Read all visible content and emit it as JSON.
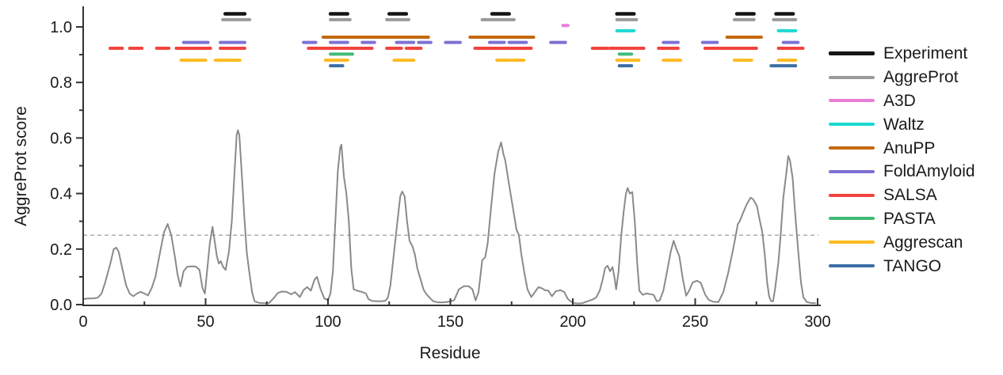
{
  "figure": {
    "background": "#ffffff"
  },
  "chart_data": {
    "type": "line",
    "title": "",
    "xlabel": "Residue",
    "ylabel": "AggreProt score",
    "xlim": [
      0,
      300
    ],
    "ylim": [
      0,
      1.0
    ],
    "x_major_ticks": [
      0,
      50,
      100,
      150,
      200,
      250,
      300
    ],
    "x_minor_ticks": [
      25,
      75,
      125,
      175,
      225,
      275
    ],
    "y_major_ticks": [
      0.0,
      0.2,
      0.4,
      0.6,
      0.8,
      1.0
    ],
    "y_minor_ticks": [
      0.1,
      0.3,
      0.5,
      0.7,
      0.9
    ],
    "grid": false,
    "legend_position": "right",
    "threshold": {
      "score": 0.25,
      "style": "dashed",
      "color": "#9e9e9e"
    },
    "curve": {
      "name": "AggreProt",
      "color": "#8a8a8a",
      "points": [
        [
          0,
          0.02
        ],
        [
          2,
          0.022
        ],
        [
          4,
          0.022
        ],
        [
          6,
          0.025
        ],
        [
          7.5,
          0.04
        ],
        [
          9,
          0.08
        ],
        [
          11,
          0.145
        ],
        [
          12.5,
          0.2
        ],
        [
          13.5,
          0.205
        ],
        [
          14.5,
          0.19
        ],
        [
          16,
          0.13
        ],
        [
          17.5,
          0.07
        ],
        [
          19,
          0.04
        ],
        [
          20.5,
          0.03
        ],
        [
          22,
          0.04
        ],
        [
          23.5,
          0.046
        ],
        [
          25,
          0.04
        ],
        [
          26.5,
          0.033
        ],
        [
          28,
          0.06
        ],
        [
          29.5,
          0.1
        ],
        [
          31,
          0.17
        ],
        [
          33,
          0.26
        ],
        [
          34.5,
          0.29
        ],
        [
          36,
          0.25
        ],
        [
          37.5,
          0.17
        ],
        [
          38.5,
          0.11
        ],
        [
          39.7,
          0.065
        ],
        [
          41,
          0.12
        ],
        [
          42.5,
          0.136
        ],
        [
          44.5,
          0.138
        ],
        [
          46,
          0.137
        ],
        [
          47.5,
          0.125
        ],
        [
          48.7,
          0.06
        ],
        [
          49.7,
          0.04
        ],
        [
          50.7,
          0.13
        ],
        [
          51.7,
          0.22
        ],
        [
          52.8,
          0.28
        ],
        [
          53.7,
          0.23
        ],
        [
          54.6,
          0.175
        ],
        [
          55.4,
          0.148
        ],
        [
          56.2,
          0.156
        ],
        [
          57.2,
          0.135
        ],
        [
          58.2,
          0.125
        ],
        [
          59.5,
          0.19
        ],
        [
          60.7,
          0.3
        ],
        [
          61.7,
          0.46
        ],
        [
          62.7,
          0.61
        ],
        [
          63.2,
          0.628
        ],
        [
          63.8,
          0.61
        ],
        [
          64.8,
          0.47
        ],
        [
          65.8,
          0.32
        ],
        [
          66.8,
          0.19
        ],
        [
          67.8,
          0.12
        ],
        [
          69,
          0.045
        ],
        [
          70,
          0.012
        ],
        [
          72,
          0.006
        ],
        [
          74,
          0.005
        ],
        [
          76,
          0.006
        ],
        [
          78,
          0.025
        ],
        [
          79.5,
          0.042
        ],
        [
          81,
          0.047
        ],
        [
          83,
          0.046
        ],
        [
          85,
          0.037
        ],
        [
          86.5,
          0.045
        ],
        [
          88.5,
          0.027
        ],
        [
          90,
          0.052
        ],
        [
          91.5,
          0.063
        ],
        [
          93,
          0.05
        ],
        [
          94.5,
          0.09
        ],
        [
          95.5,
          0.1
        ],
        [
          97,
          0.055
        ],
        [
          98.5,
          0.022
        ],
        [
          100,
          0.016
        ],
        [
          101,
          0.04
        ],
        [
          102,
          0.12
        ],
        [
          103,
          0.3
        ],
        [
          104,
          0.48
        ],
        [
          105,
          0.565
        ],
        [
          105.5,
          0.576
        ],
        [
          106.5,
          0.46
        ],
        [
          107.5,
          0.4
        ],
        [
          108.5,
          0.3
        ],
        [
          109.5,
          0.13
        ],
        [
          110.5,
          0.055
        ],
        [
          112,
          0.05
        ],
        [
          114,
          0.045
        ],
        [
          115.5,
          0.04
        ],
        [
          116.5,
          0.02
        ],
        [
          118,
          0.013
        ],
        [
          120,
          0.012
        ],
        [
          122,
          0.012
        ],
        [
          123.5,
          0.014
        ],
        [
          124.5,
          0.026
        ],
        [
          125.5,
          0.07
        ],
        [
          126.5,
          0.15
        ],
        [
          128,
          0.27
        ],
        [
          129.5,
          0.39
        ],
        [
          130.3,
          0.407
        ],
        [
          131.3,
          0.39
        ],
        [
          132.3,
          0.3
        ],
        [
          133.3,
          0.23
        ],
        [
          134.5,
          0.21
        ],
        [
          135.5,
          0.18
        ],
        [
          136.5,
          0.13
        ],
        [
          137.5,
          0.1
        ],
        [
          139,
          0.055
        ],
        [
          140,
          0.04
        ],
        [
          141.5,
          0.025
        ],
        [
          143,
          0.012
        ],
        [
          145,
          0.008
        ],
        [
          147,
          0.008
        ],
        [
          149,
          0.01
        ],
        [
          151.5,
          0.015
        ],
        [
          153.5,
          0.055
        ],
        [
          155.5,
          0.066
        ],
        [
          157.5,
          0.066
        ],
        [
          159,
          0.055
        ],
        [
          160.3,
          0.015
        ],
        [
          161.5,
          0.045
        ],
        [
          163,
          0.16
        ],
        [
          164.2,
          0.17
        ],
        [
          165.2,
          0.22
        ],
        [
          166.5,
          0.34
        ],
        [
          168,
          0.47
        ],
        [
          169.5,
          0.55
        ],
        [
          170.7,
          0.584
        ],
        [
          171.7,
          0.54
        ],
        [
          172.4,
          0.52
        ],
        [
          174,
          0.43
        ],
        [
          175.5,
          0.35
        ],
        [
          177,
          0.27
        ],
        [
          178,
          0.25
        ],
        [
          179,
          0.18
        ],
        [
          180.2,
          0.115
        ],
        [
          181.5,
          0.055
        ],
        [
          183,
          0.027
        ],
        [
          184.5,
          0.045
        ],
        [
          186,
          0.063
        ],
        [
          187.5,
          0.058
        ],
        [
          188.5,
          0.052
        ],
        [
          190,
          0.05
        ],
        [
          191.5,
          0.03
        ],
        [
          193,
          0.048
        ],
        [
          195,
          0.052
        ],
        [
          196.5,
          0.045
        ],
        [
          198,
          0.02
        ],
        [
          200,
          0.006
        ],
        [
          202,
          0.004
        ],
        [
          204,
          0.005
        ],
        [
          206,
          0.012
        ],
        [
          208,
          0.018
        ],
        [
          209.5,
          0.025
        ],
        [
          211,
          0.05
        ],
        [
          212.2,
          0.09
        ],
        [
          213.2,
          0.132
        ],
        [
          214.2,
          0.14
        ],
        [
          215.2,
          0.12
        ],
        [
          216.2,
          0.135
        ],
        [
          217,
          0.1
        ],
        [
          217.7,
          0.055
        ],
        [
          218.7,
          0.12
        ],
        [
          219.7,
          0.24
        ],
        [
          220.7,
          0.33
        ],
        [
          221.7,
          0.4
        ],
        [
          222.4,
          0.42
        ],
        [
          223.3,
          0.4
        ],
        [
          224.3,
          0.405
        ],
        [
          225.3,
          0.3
        ],
        [
          226.3,
          0.15
        ],
        [
          227.2,
          0.05
        ],
        [
          228.5,
          0.035
        ],
        [
          230,
          0.04
        ],
        [
          231.5,
          0.038
        ],
        [
          233,
          0.035
        ],
        [
          234.3,
          0.012
        ],
        [
          235.5,
          0.015
        ],
        [
          237,
          0.05
        ],
        [
          238.5,
          0.12
        ],
        [
          240,
          0.19
        ],
        [
          241.2,
          0.23
        ],
        [
          242.3,
          0.2
        ],
        [
          243.5,
          0.175
        ],
        [
          245,
          0.09
        ],
        [
          246.3,
          0.032
        ],
        [
          247.5,
          0.05
        ],
        [
          249,
          0.08
        ],
        [
          250.7,
          0.086
        ],
        [
          252.3,
          0.078
        ],
        [
          254,
          0.037
        ],
        [
          255.5,
          0.017
        ],
        [
          257.5,
          0.01
        ],
        [
          259.5,
          0.009
        ],
        [
          261.5,
          0.045
        ],
        [
          263.5,
          0.115
        ],
        [
          265.5,
          0.2
        ],
        [
          266.8,
          0.26
        ],
        [
          267.4,
          0.29
        ],
        [
          268.2,
          0.3
        ],
        [
          269.5,
          0.33
        ],
        [
          271,
          0.36
        ],
        [
          272.6,
          0.385
        ],
        [
          273.6,
          0.38
        ],
        [
          275.2,
          0.355
        ],
        [
          276.2,
          0.31
        ],
        [
          277.4,
          0.26
        ],
        [
          278.4,
          0.18
        ],
        [
          279.4,
          0.08
        ],
        [
          280.2,
          0.03
        ],
        [
          281,
          0.012
        ],
        [
          281.8,
          0.012
        ],
        [
          282.7,
          0.06
        ],
        [
          284,
          0.155
        ],
        [
          285,
          0.26
        ],
        [
          286,
          0.385
        ],
        [
          287.3,
          0.48
        ],
        [
          288,
          0.535
        ],
        [
          288.7,
          0.52
        ],
        [
          289.8,
          0.455
        ],
        [
          290.8,
          0.33
        ],
        [
          292,
          0.2
        ],
        [
          293.2,
          0.08
        ],
        [
          294.2,
          0.026
        ],
        [
          295.5,
          0.01
        ],
        [
          297,
          0.006
        ],
        [
          299,
          0.005
        ]
      ]
    },
    "tracks": [
      {
        "name": "Experiment",
        "color": "#141414",
        "row_score": 1.047,
        "line_width": 4.5,
        "segments": [
          [
            58,
            66
          ],
          [
            101,
            108
          ],
          [
            125,
            132
          ],
          [
            167,
            174
          ],
          [
            218,
            225
          ],
          [
            267,
            274
          ],
          [
            283,
            290
          ]
        ]
      },
      {
        "name": "AggreProt",
        "color": "#9a9a9a",
        "row_score": 1.026,
        "line_width": 4,
        "segments": [
          [
            57,
            68
          ],
          [
            101,
            109
          ],
          [
            124,
            133
          ],
          [
            163,
            176
          ],
          [
            218,
            226
          ],
          [
            266,
            274
          ],
          [
            282,
            291
          ]
        ]
      },
      {
        "name": "A3D",
        "color": "#ea7ed8",
        "row_score": 1.005,
        "line_width": 4,
        "segments": [
          [
            196,
            198
          ]
        ]
      },
      {
        "name": "Waltz",
        "color": "#1cd9d2",
        "row_score": 0.986,
        "line_width": 4,
        "segments": [
          [
            218,
            225
          ],
          [
            284,
            291
          ]
        ]
      },
      {
        "name": "AnuPP",
        "color": "#c4690f",
        "row_score": 0.963,
        "line_width": 4,
        "segments": [
          [
            98,
            141
          ],
          [
            158,
            184
          ],
          [
            263,
            277
          ]
        ]
      },
      {
        "name": "FoldAmyloid",
        "color": "#7d72d3",
        "row_score": 0.944,
        "line_width": 4,
        "segments": [
          [
            41,
            51
          ],
          [
            56,
            66
          ],
          [
            90,
            95
          ],
          [
            101,
            108
          ],
          [
            114,
            119
          ],
          [
            128,
            135
          ],
          [
            137,
            142
          ],
          [
            148,
            154
          ],
          [
            166,
            172
          ],
          [
            174,
            181
          ],
          [
            191,
            197
          ],
          [
            237,
            243
          ],
          [
            253,
            259
          ],
          [
            286,
            292
          ]
        ]
      },
      {
        "name": "SALSA",
        "color": "#f2443e",
        "row_score": 0.923,
        "line_width": 4,
        "segments": [
          [
            11,
            16
          ],
          [
            19,
            24
          ],
          [
            30,
            35
          ],
          [
            38,
            52
          ],
          [
            56,
            66
          ],
          [
            92,
            118
          ],
          [
            124,
            130
          ],
          [
            132,
            138
          ],
          [
            160,
            183
          ],
          [
            208,
            214
          ],
          [
            215,
            229
          ],
          [
            235,
            243
          ],
          [
            254,
            275
          ],
          [
            284,
            294
          ]
        ]
      },
      {
        "name": "PASTA",
        "color": "#41ba77",
        "row_score": 0.902,
        "line_width": 4,
        "segments": [
          [
            101,
            110
          ],
          [
            219,
            224
          ]
        ]
      },
      {
        "name": "Aggrescan",
        "color": "#fdbb20",
        "row_score": 0.88,
        "line_width": 4,
        "segments": [
          [
            40,
            50
          ],
          [
            54,
            64
          ],
          [
            99,
            108
          ],
          [
            127,
            135
          ],
          [
            169,
            174
          ],
          [
            175,
            180
          ],
          [
            218,
            227
          ],
          [
            237,
            244
          ],
          [
            266,
            273
          ],
          [
            284,
            291
          ]
        ]
      },
      {
        "name": "TANGO",
        "color": "#3b6ea5",
        "row_score": 0.86,
        "line_width": 4,
        "segments": [
          [
            101,
            106
          ],
          [
            219,
            224
          ],
          [
            281,
            291
          ]
        ]
      }
    ]
  },
  "legend": {
    "items": [
      {
        "label": "Experiment",
        "color": "#141414"
      },
      {
        "label": "AggreProt",
        "color": "#9a9a9a"
      },
      {
        "label": "A3D",
        "color": "#ea7ed8"
      },
      {
        "label": "Waltz",
        "color": "#1cd9d2"
      },
      {
        "label": "AnuPP",
        "color": "#c4690f"
      },
      {
        "label": "FoldAmyloid",
        "color": "#7d72d3"
      },
      {
        "label": "SALSA",
        "color": "#f2443e"
      },
      {
        "label": "PASTA",
        "color": "#41ba77"
      },
      {
        "label": "Aggrescan",
        "color": "#fdbb20"
      },
      {
        "label": "TANGO",
        "color": "#3b6ea5"
      }
    ]
  }
}
